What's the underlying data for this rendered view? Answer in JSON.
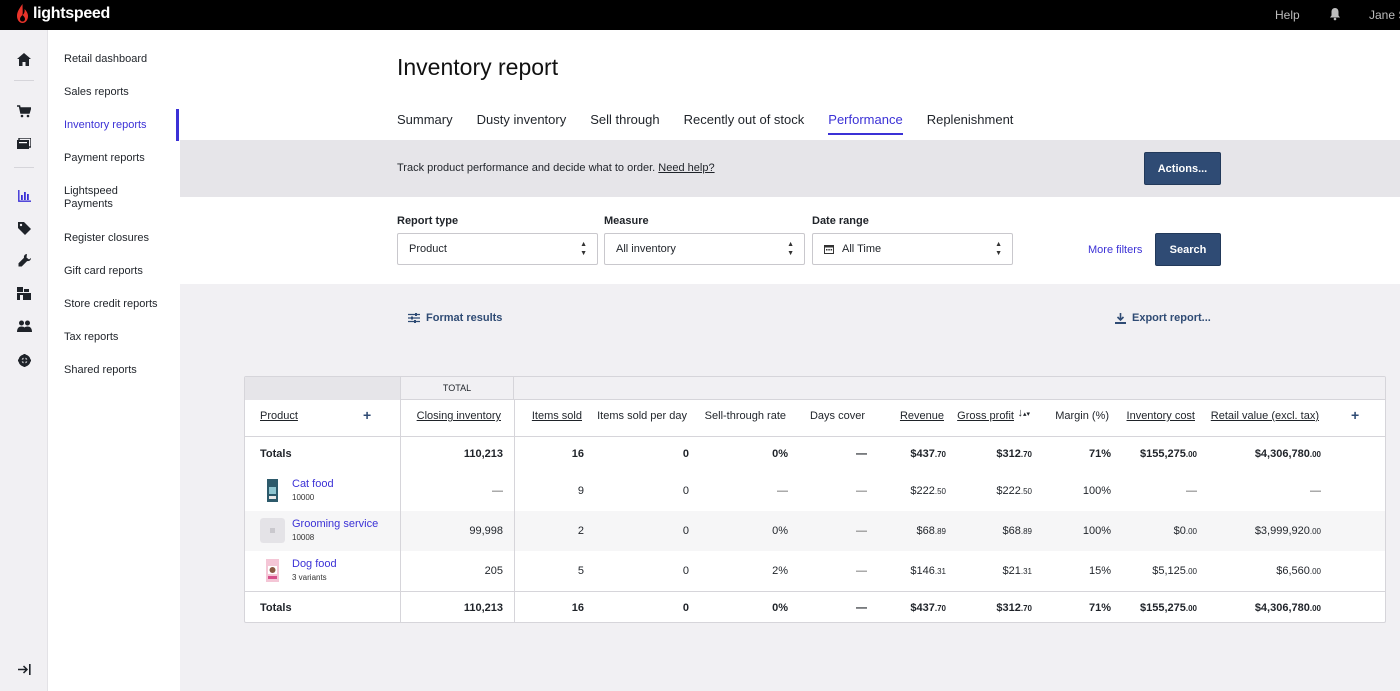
{
  "brand": {
    "name": "lightspeed"
  },
  "topbar": {
    "help": "Help",
    "user": "Jane S"
  },
  "submenu": [
    "Retail dashboard",
    "Sales reports",
    "Inventory reports",
    "Payment reports",
    "Lightspeed Payments",
    "Register closures",
    "Gift card reports",
    "Store credit reports",
    "Tax reports",
    "Shared reports"
  ],
  "page": {
    "title": "Inventory report",
    "tabs": [
      "Summary",
      "Dusty inventory",
      "Sell through",
      "Recently out of stock",
      "Performance",
      "Replenishment"
    ],
    "active_tab": "Performance",
    "band_text": "Track product performance and decide what to order.",
    "band_link": "Need help?",
    "actions_label": "Actions..."
  },
  "filters": {
    "report_type_label": "Report type",
    "report_type_value": "Product",
    "measure_label": "Measure",
    "measure_value": "All inventory",
    "date_range_label": "Date range",
    "date_range_value": "All Time",
    "more_filters": "More filters",
    "search_label": "Search"
  },
  "tools": {
    "format_results": "Format results",
    "export_report": "Export report..."
  },
  "table": {
    "group_total": "TOTAL",
    "headers": {
      "product": "Product",
      "closing_inventory": "Closing inventory",
      "items_sold": "Items sold",
      "items_sold_per_day": "Items sold per day",
      "sell_through_rate": "Sell-through rate",
      "days_cover": "Days cover",
      "revenue": "Revenue",
      "gross_profit": "Gross profit",
      "margin": "Margin (%)",
      "inventory_cost": "Inventory cost",
      "retail_value": "Retail value (excl. tax)"
    },
    "totals_top": {
      "label": "Totals",
      "closing_inventory": "110,213",
      "items_sold": "16",
      "items_sold_per_day": "0",
      "sell_through_rate": "0%",
      "days_cover": "—",
      "revenue": "$437",
      "revenue_dec": ".70",
      "gross_profit": "$312",
      "gross_profit_dec": ".70",
      "margin": "71%",
      "inventory_cost": "$155,275",
      "inventory_cost_dec": ".00",
      "retail_value": "$4,306,780",
      "retail_value_dec": ".00"
    },
    "rows": [
      {
        "name": "Cat food",
        "sub": "10000",
        "closing_inventory": "—",
        "items_sold": "9",
        "items_sold_per_day": "0",
        "sell_through_rate": "—",
        "days_cover": "—",
        "revenue": "$222",
        "revenue_dec": ".50",
        "gross_profit": "$222",
        "gross_profit_dec": ".50",
        "margin": "100%",
        "inventory_cost": "—",
        "inventory_cost_dec": "",
        "retail_value": "—",
        "retail_value_dec": ""
      },
      {
        "name": "Grooming service",
        "sub": "10008",
        "closing_inventory": "99,998",
        "items_sold": "2",
        "items_sold_per_day": "0",
        "sell_through_rate": "0%",
        "days_cover": "—",
        "revenue": "$68",
        "revenue_dec": ".89",
        "gross_profit": "$68",
        "gross_profit_dec": ".89",
        "margin": "100%",
        "inventory_cost": "$0",
        "inventory_cost_dec": ".00",
        "retail_value": "$3,999,920",
        "retail_value_dec": ".00"
      },
      {
        "name": "Dog food",
        "sub": "3 variants",
        "closing_inventory": "205",
        "items_sold": "5",
        "items_sold_per_day": "0",
        "sell_through_rate": "2%",
        "days_cover": "—",
        "revenue": "$146",
        "revenue_dec": ".31",
        "gross_profit": "$21",
        "gross_profit_dec": ".31",
        "margin": "15%",
        "inventory_cost": "$5,125",
        "inventory_cost_dec": ".00",
        "retail_value": "$6,560",
        "retail_value_dec": ".00"
      }
    ],
    "totals_bottom": {
      "label": "Totals",
      "closing_inventory": "110,213",
      "items_sold": "16",
      "items_sold_per_day": "0",
      "sell_through_rate": "0%",
      "days_cover": "—",
      "revenue": "$437",
      "revenue_dec": ".70",
      "gross_profit": "$312",
      "gross_profit_dec": ".70",
      "margin": "71%",
      "inventory_cost": "$155,275",
      "inventory_cost_dec": ".00",
      "retail_value": "$4,306,780",
      "retail_value_dec": ".00"
    }
  },
  "colors": {
    "accent": "#3b31d6",
    "button": "#2f4b74",
    "brand_red": "#e8332a"
  }
}
